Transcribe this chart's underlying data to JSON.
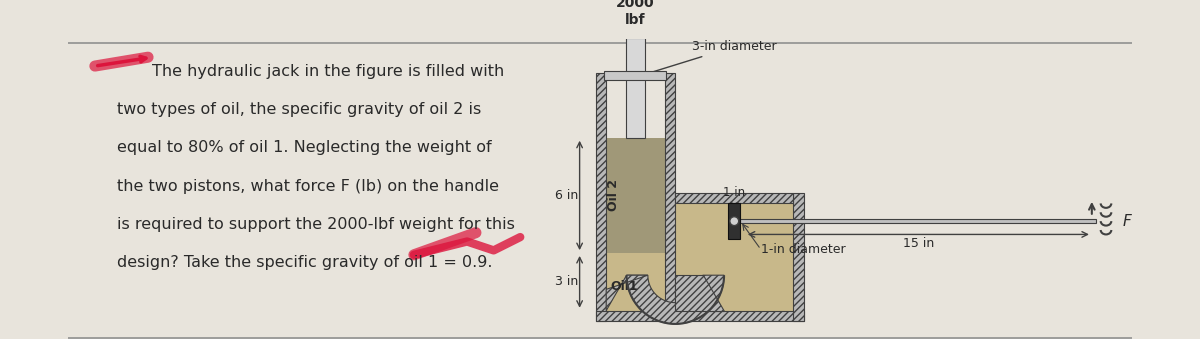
{
  "bg_color": "#e8e4dc",
  "text_color": "#2a2a2a",
  "problem_text_lines": [
    "The hydraulic jack in the figure is filled with",
    "two types of oil, the specific gravity of oil 2 is",
    "equal to 80% of oil 1. Neglecting the weight of",
    "the two pistons, what force F (lb) on the handle",
    "is required to support the 2000-lbf weight for this",
    "design? Take the specific gravity of oil 1 = 0.9."
  ],
  "label_2000lbf": "2000\nlbf",
  "label_3in_diam": "3-in diameter",
  "label_1in": "1 in",
  "label_15in": "15 in",
  "label_1in_diam": "1-in diameter",
  "label_oil2": "Oil 2",
  "label_oil1": "Oil1",
  "label_6in": "6 in",
  "label_3in": "3 in",
  "label_F": "F",
  "hatch_color": "#7a7a7a",
  "oil1_color": "#c8b88a",
  "oil2_color": "#a09878",
  "weight_color": "#b0b0b0",
  "metal_color": "#d0d0d0",
  "dark_color": "#404040"
}
